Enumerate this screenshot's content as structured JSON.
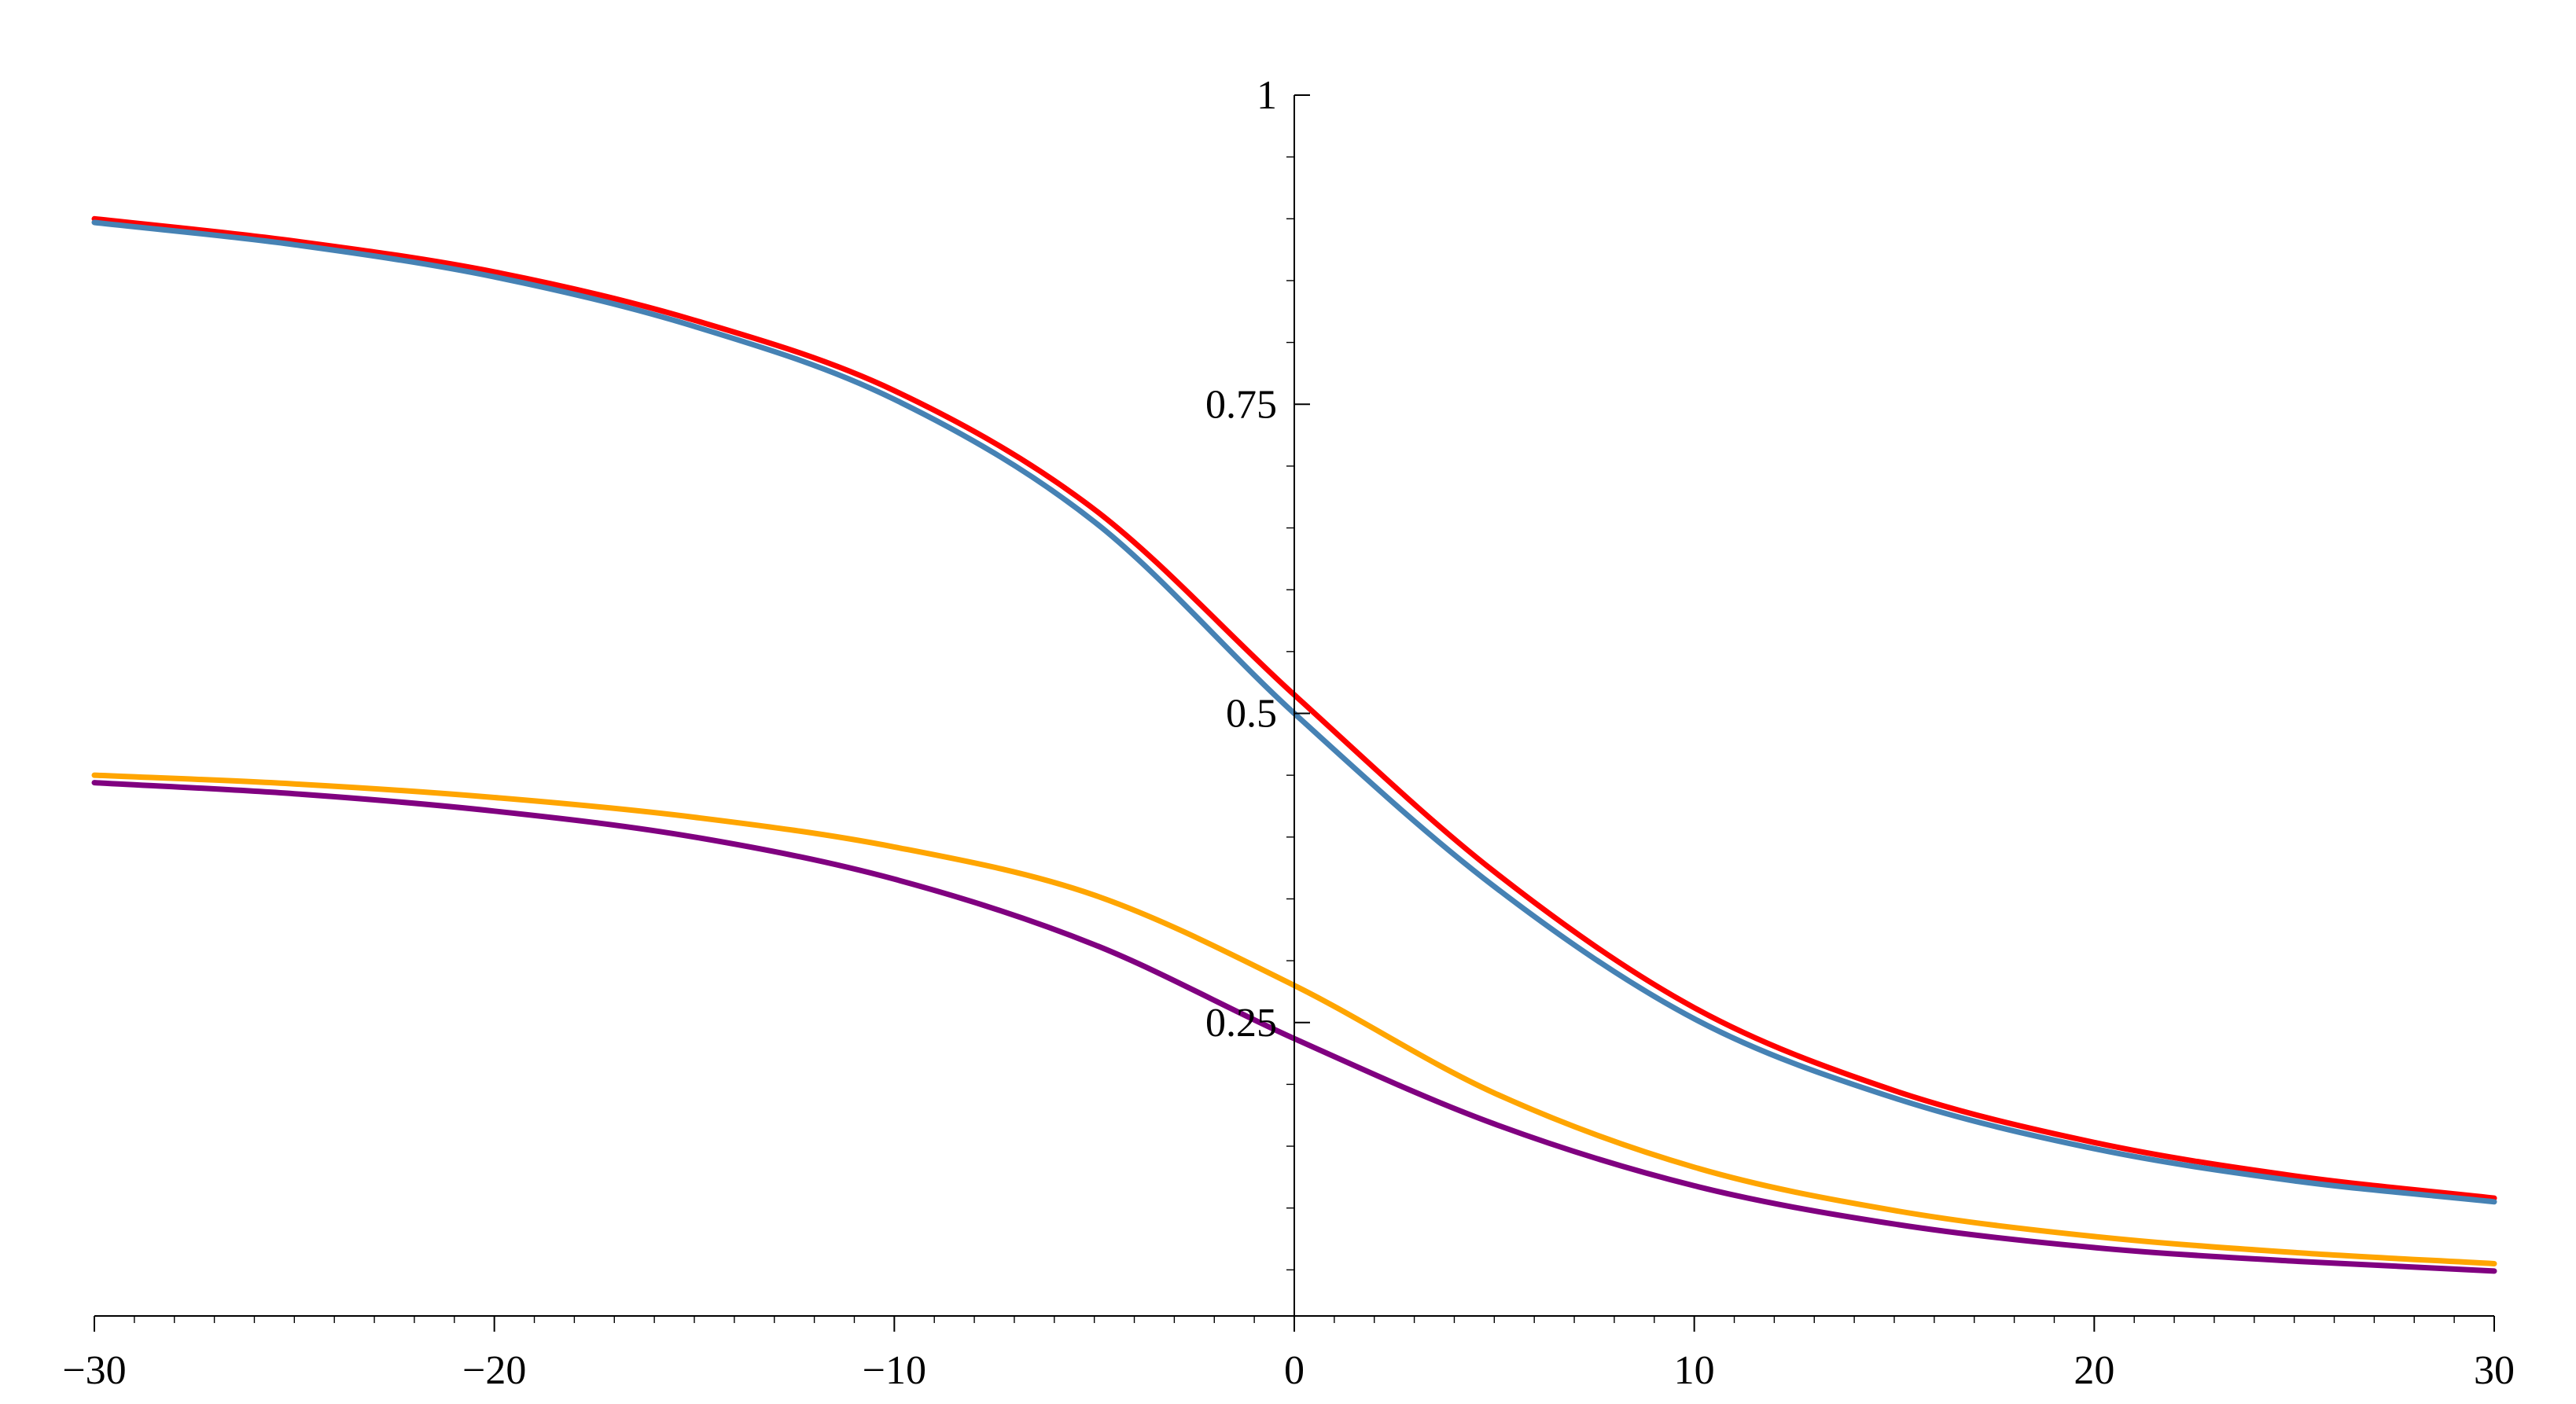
{
  "chart_data": {
    "type": "line",
    "title": "",
    "xlabel": "",
    "ylabel": "",
    "xlim": [
      -30,
      30
    ],
    "ylim": [
      0,
      1
    ],
    "grid": false,
    "legend": "none",
    "x_ticks": [
      {
        "value": -30,
        "label": "−30"
      },
      {
        "value": -20,
        "label": "−20"
      },
      {
        "value": -10,
        "label": "−10"
      },
      {
        "value": 0,
        "label": "0"
      },
      {
        "value": 10,
        "label": "10"
      },
      {
        "value": 20,
        "label": "20"
      },
      {
        "value": 30,
        "label": "30"
      }
    ],
    "y_ticks": [
      {
        "value": 0.25,
        "label": "0.25"
      },
      {
        "value": 0.5,
        "label": "0.5"
      },
      {
        "value": 0.75,
        "label": "0.75"
      },
      {
        "value": 1,
        "label": "1"
      }
    ],
    "x": [
      -30,
      -25,
      -20,
      -15,
      -10,
      -5,
      0,
      5,
      10,
      15,
      20,
      25,
      30
    ],
    "series": [
      {
        "color": "#ff0000",
        "values": [
          0.9,
          0.882,
          0.857,
          0.818,
          0.761,
          0.665,
          0.515,
          0.372,
          0.262,
          0.195,
          0.153,
          0.126,
          0.108
        ]
      },
      {
        "color": "#4682b4",
        "values": [
          0.897,
          0.879,
          0.853,
          0.813,
          0.754,
          0.655,
          0.5,
          0.36,
          0.253,
          0.189,
          0.148,
          0.122,
          0.105
        ]
      },
      {
        "color": "#ffa500",
        "values": [
          0.45,
          0.443,
          0.432,
          0.416,
          0.392,
          0.353,
          0.28,
          0.193,
          0.133,
          0.098,
          0.077,
          0.064,
          0.055
        ]
      },
      {
        "color": "#800080",
        "values": [
          0.444,
          0.435,
          0.421,
          0.4,
          0.366,
          0.313,
          0.237,
          0.168,
          0.118,
          0.087,
          0.068,
          0.057,
          0.049
        ]
      }
    ]
  }
}
